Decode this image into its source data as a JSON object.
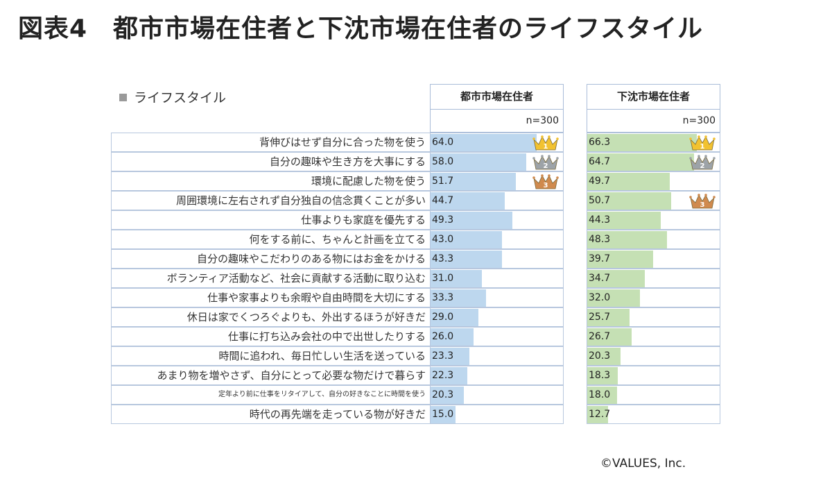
{
  "title": "図表4　都市市場在住者と下沈市場在住者のライフスタイル",
  "section_label": "ライフスタイル",
  "copyright": "©VALUES, Inc.",
  "colors": {
    "city": "#bdd7ee",
    "local": "#c5e0b4",
    "gold": "#f2c230",
    "silver": "#9da3a8",
    "bronze": "#d08a4e"
  },
  "chart_data": {
    "type": "bar",
    "categories": [
      "背伸びはせず自分に合った物を使う",
      "自分の趣味や生き方を大事にする",
      "環境に配慮した物を使う",
      "周囲環境に左右されず自分独自の信念貫くことが多い",
      "仕事よりも家庭を優先する",
      "何をする前に、ちゃんと計画を立てる",
      "自分の趣味やこだわりのある物にはお金をかける",
      "ボランティア活動など、社会に貢献する活動に取り込む",
      "仕事や家事よりも余暇や自由時間を大切にする",
      "休日は家でくつろぐよりも、外出するほうが好きだ",
      "仕事に打ち込み会社の中で出世したりする",
      "時間に追われ、毎日忙しい生活を送っている",
      "あまり物を増やさず、自分にとって必要な物だけで暮らす",
      "定年より前に仕事をリタイアして、自分の好きなことに時間を使う",
      "時代の再先端を走っている物が好きだ"
    ],
    "series": [
      {
        "name": "都市市場在住者",
        "n_label": "n=300",
        "values": [
          64.0,
          58.0,
          51.7,
          44.7,
          49.3,
          43.0,
          43.3,
          31.0,
          33.3,
          29.0,
          26.0,
          23.3,
          22.3,
          20.3,
          15.0
        ],
        "value_labels": [
          "64.0",
          "58.0",
          "51.7",
          "44.7",
          "49.3",
          "43.0",
          "43.3",
          "31.0",
          "33.3",
          "29.0",
          "26.0",
          "23.3",
          "22.3",
          "20.3",
          "15.0"
        ],
        "ranks": [
          {
            "row": 0,
            "rank": "1"
          },
          {
            "row": 1,
            "rank": "2"
          },
          {
            "row": 2,
            "rank": "3"
          }
        ]
      },
      {
        "name": "下沈市場在住者",
        "n_label": "n=300",
        "values": [
          66.3,
          64.7,
          49.7,
          50.7,
          44.3,
          48.3,
          39.7,
          34.7,
          32.0,
          25.7,
          26.7,
          20.3,
          18.3,
          18.0,
          12.7
        ],
        "value_labels": [
          "66.3",
          "64.7",
          "49.7",
          "50.7",
          "44.3",
          "48.3",
          "39.7",
          "34.7",
          "32.0",
          "25.7",
          "26.7",
          "20.3",
          "18.3",
          "18.0",
          "12.7"
        ],
        "ranks": [
          {
            "row": 0,
            "rank": "1"
          },
          {
            "row": 1,
            "rank": "2"
          },
          {
            "row": 3,
            "rank": "3"
          }
        ]
      }
    ],
    "xlim": [
      0,
      80
    ],
    "grid": false,
    "legend": "none"
  }
}
